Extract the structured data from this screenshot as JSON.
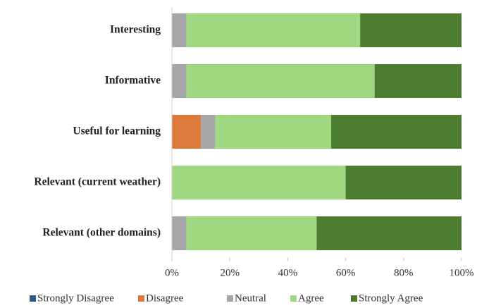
{
  "chart_data": {
    "type": "stacked_bar_horizontal",
    "categories": [
      "Interesting",
      "Informative",
      "Useful for learning",
      "Relevant (current weather)",
      "Relevant (other domains)"
    ],
    "series": [
      {
        "name": "Strongly Disagree",
        "color": "#2f5b86",
        "values": [
          0,
          0,
          0,
          0,
          0
        ]
      },
      {
        "name": "Disagree",
        "color": "#dd7a3b",
        "values": [
          0,
          0,
          10,
          0,
          0
        ]
      },
      {
        "name": "Neutral",
        "color": "#a6a6a6",
        "values": [
          5,
          5,
          5,
          0,
          5
        ]
      },
      {
        "name": "Agree",
        "color": "#a0d982",
        "values": [
          60,
          65,
          40,
          60,
          45
        ]
      },
      {
        "name": "Strongly Agree",
        "color": "#4b7c2f",
        "values": [
          35,
          30,
          45,
          40,
          50
        ]
      }
    ],
    "xlim": [
      0,
      100
    ],
    "xticks": [
      {
        "value": 0,
        "label": "0%"
      },
      {
        "value": 20,
        "label": "20%"
      },
      {
        "value": 40,
        "label": "40%"
      },
      {
        "value": 60,
        "label": "60%"
      },
      {
        "value": 80,
        "label": "80%"
      },
      {
        "value": 100,
        "label": "100%"
      }
    ],
    "legend": "bottom"
  }
}
